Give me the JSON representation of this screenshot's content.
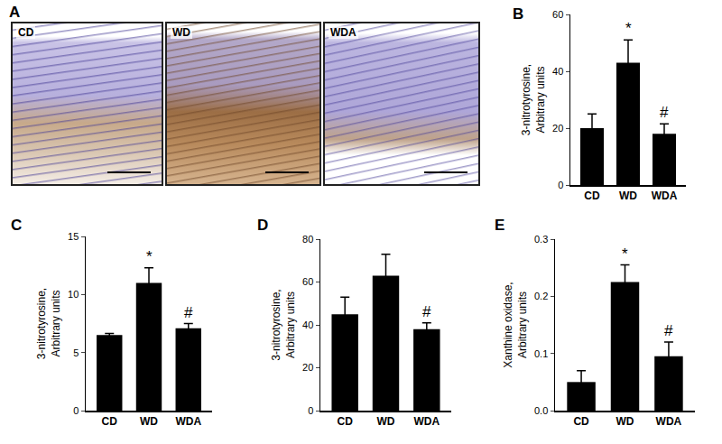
{
  "micrographs": {
    "panel": "A",
    "labels": [
      "CD",
      "WD",
      "WDA"
    ]
  },
  "chart_data": [
    {
      "type": "bar",
      "panel": "B",
      "categories": [
        "CD",
        "WD",
        "WDA"
      ],
      "values": [
        20,
        43,
        18
      ],
      "errors": [
        5,
        8,
        3.5
      ],
      "significance": [
        null,
        "*",
        "#"
      ],
      "color": "#000000",
      "ylabel": "3-nitrotyrosine,\nArbitrary units",
      "ylim": [
        0,
        60
      ],
      "yticks": [
        0,
        20,
        40,
        60
      ],
      "grid": false
    },
    {
      "type": "bar",
      "panel": "C",
      "categories": [
        "CD",
        "WD",
        "WDA"
      ],
      "values": [
        6.5,
        11,
        7.1
      ],
      "errors": [
        0.15,
        1.3,
        0.4
      ],
      "significance": [
        null,
        "*",
        "#"
      ],
      "color": "#000000",
      "ylabel": "3-nitrotyrosine,\nArbitrary units",
      "ylim": [
        0,
        15
      ],
      "yticks": [
        0,
        5,
        10,
        15
      ],
      "grid": false
    },
    {
      "type": "bar",
      "panel": "D",
      "categories": [
        "CD",
        "WD",
        "WDA"
      ],
      "values": [
        45,
        63,
        38
      ],
      "errors": [
        8,
        10,
        3
      ],
      "significance": [
        null,
        null,
        "#"
      ],
      "color": "#000000",
      "ylabel": "3-nitrotyrosine,\nArbitrary units",
      "ylim": [
        0,
        80
      ],
      "yticks": [
        0,
        20,
        40,
        60,
        80
      ],
      "grid": false
    },
    {
      "type": "bar",
      "panel": "E",
      "categories": [
        "CD",
        "WD",
        "WDA"
      ],
      "values": [
        0.05,
        0.225,
        0.095
      ],
      "errors": [
        0.02,
        0.03,
        0.025
      ],
      "significance": [
        null,
        "*",
        "#"
      ],
      "color": "#000000",
      "ylabel": "Xanthine oxidase,\nArbitrary units",
      "ylim": [
        0,
        0.3
      ],
      "yticks": [
        {
          "value": 0,
          "label": "0.0"
        },
        0.1,
        0.2,
        0.3
      ],
      "grid": false
    }
  ]
}
